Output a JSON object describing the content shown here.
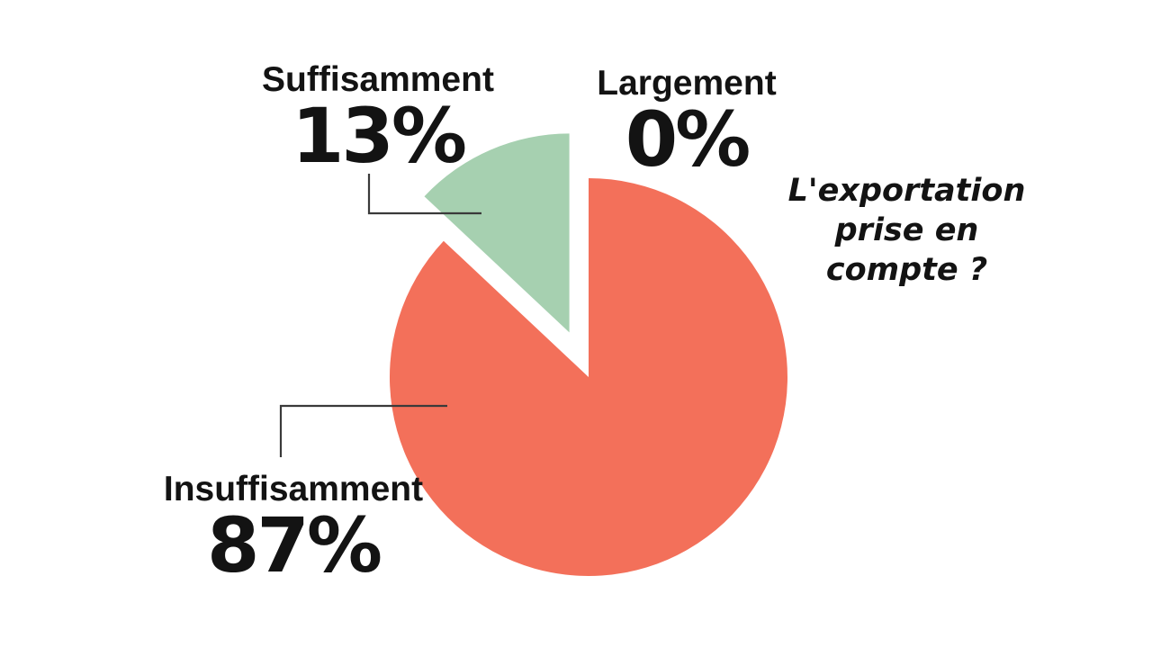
{
  "chart_data": {
    "type": "pie",
    "title": "L'exportation prise en compte ?",
    "title_lines": [
      "L'exportation",
      "prise en",
      "compte ?"
    ],
    "slices": [
      {
        "label": "Insuffisamment",
        "value": 87,
        "display": "87%",
        "color": "#F3705A",
        "explode": 0
      },
      {
        "label": "Suffisamment",
        "value": 13,
        "display": "13%",
        "color": "#A6D0B0",
        "explode": 54
      },
      {
        "label": "Largement",
        "value": 0,
        "display": "0%",
        "color": "#A6D0B0",
        "explode": 0
      }
    ],
    "start_angle_deg": 0,
    "direction": "clockwise",
    "legend_position": "none",
    "grid": false,
    "background_color": "#FFFFFF",
    "connector_line_color": "#3A3A3A",
    "text_color": "#131313",
    "pie": {
      "center": [
        654,
        419
      ],
      "radius": 221
    }
  }
}
